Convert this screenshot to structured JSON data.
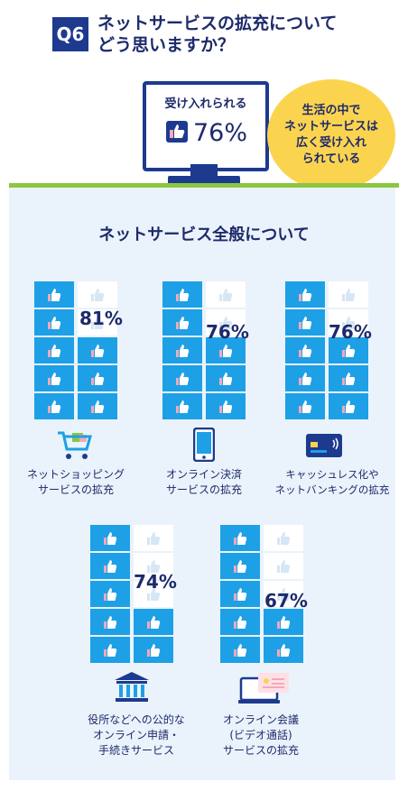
{
  "header": {
    "badge": "Q6",
    "question_line1": "ネットサービスの拡充について",
    "question_line2": "どう思いますか？"
  },
  "summary": {
    "monitor_label": "受け入れられる",
    "monitor_value": "76%",
    "bubble_text": "生活の中で\nネットサービスは\n広く受け入れ\nられている"
  },
  "section": {
    "title": "ネットサービス全般について"
  },
  "colors": {
    "navy": "#1d3a8f",
    "accent_blue": "#1ea0e6",
    "yellow": "#fbd44f",
    "green": "#8dc63f",
    "panel_bg": "#eaf3fb"
  },
  "items": [
    {
      "value": "81%",
      "filled_fraction": 0.81,
      "icon": "shopping-cart-icon",
      "label": "ネットショッピング\nサービスの拡充"
    },
    {
      "value": "76%",
      "filled_fraction": 0.76,
      "icon": "smartphone-icon",
      "label": "オンライン決済\nサービスの拡充"
    },
    {
      "value": "76%",
      "filled_fraction": 0.76,
      "icon": "credit-card-icon",
      "label": "キャッシュレス化や\nネットバンキングの拡充"
    },
    {
      "value": "74%",
      "filled_fraction": 0.74,
      "icon": "government-building-icon",
      "label": "役所などへの公的な\nオンライン申請・\n手続きサービス"
    },
    {
      "value": "67%",
      "filled_fraction": 0.67,
      "icon": "video-call-icon",
      "label": "オンライン会議\n(ビデオ通話)\nサービスの拡充"
    }
  ]
}
